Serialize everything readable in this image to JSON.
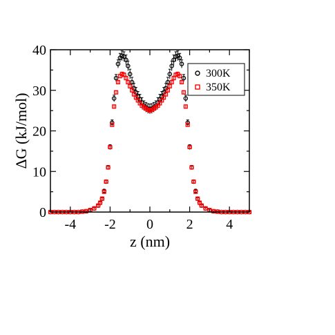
{
  "chart_data": {
    "type": "scatter",
    "title": "",
    "xlabel": "z (nm)",
    "ylabel": "ΔG (kJ/mol)",
    "xlim": [
      -5,
      5
    ],
    "ylim": [
      0,
      40
    ],
    "xticks": [
      -4,
      -2,
      0,
      2,
      4
    ],
    "yticks": [
      0,
      10,
      20,
      30,
      40
    ],
    "grid": false,
    "legend_position": "top-right",
    "series": [
      {
        "name": "300K",
        "color": "#000000",
        "marker": "open-circle",
        "error_bars": true,
        "x": [
          -5.0,
          -4.8,
          -4.6,
          -4.4,
          -4.2,
          -4.0,
          -3.8,
          -3.6,
          -3.4,
          -3.2,
          -3.0,
          -2.8,
          -2.6,
          -2.5,
          -2.4,
          -2.3,
          -2.2,
          -2.1,
          -2.0,
          -1.9,
          -1.8,
          -1.7,
          -1.6,
          -1.5,
          -1.4,
          -1.3,
          -1.2,
          -1.1,
          -1.0,
          -0.9,
          -0.8,
          -0.7,
          -0.6,
          -0.5,
          -0.4,
          -0.3,
          -0.2,
          -0.1,
          0.0,
          0.1,
          0.2,
          0.3,
          0.4,
          0.5,
          0.6,
          0.7,
          0.8,
          0.9,
          1.0,
          1.1,
          1.2,
          1.3,
          1.4,
          1.5,
          1.6,
          1.7,
          1.8,
          1.9,
          2.0,
          2.1,
          2.2,
          2.3,
          2.4,
          2.5,
          2.6,
          2.8,
          3.0,
          3.2,
          3.4,
          3.6,
          3.8,
          4.0,
          4.2,
          4.4,
          4.6,
          4.8,
          5.0
        ],
        "y": [
          0.0,
          0.0,
          0.0,
          0.0,
          0.0,
          0.0,
          0.0,
          0.0,
          0.1,
          0.2,
          0.5,
          0.9,
          1.6,
          2.3,
          3.3,
          5.2,
          7.5,
          11.0,
          16.0,
          22.0,
          28.0,
          33.0,
          36.5,
          38.0,
          38.5,
          38.3,
          37.5,
          36.0,
          34.0,
          32.0,
          30.5,
          29.5,
          28.5,
          27.8,
          27.0,
          26.2,
          25.8,
          25.5,
          25.4,
          25.5,
          25.8,
          26.2,
          27.0,
          27.8,
          28.5,
          29.5,
          30.5,
          32.0,
          34.0,
          36.0,
          37.5,
          38.3,
          38.5,
          38.0,
          36.5,
          33.0,
          28.0,
          22.0,
          16.0,
          11.0,
          7.5,
          5.2,
          3.3,
          2.3,
          1.6,
          0.9,
          0.5,
          0.2,
          0.1,
          0.0,
          0.0,
          0.0,
          0.0,
          0.0,
          0.0,
          0.0,
          0.0
        ],
        "err": [
          0.1,
          0.1,
          0.1,
          0.1,
          0.1,
          0.1,
          0.1,
          0.1,
          0.1,
          0.1,
          0.2,
          0.2,
          0.3,
          0.3,
          0.3,
          0.4,
          0.4,
          0.5,
          0.6,
          0.7,
          0.8,
          0.9,
          1.0,
          1.1,
          1.2,
          1.2,
          1.2,
          1.2,
          1.2,
          1.2,
          1.2,
          1.2,
          1.2,
          1.2,
          1.2,
          1.2,
          1.2,
          1.2,
          1.2,
          1.2,
          1.2,
          1.2,
          1.2,
          1.2,
          1.2,
          1.2,
          1.2,
          1.2,
          1.2,
          1.2,
          1.2,
          1.2,
          1.2,
          1.1,
          1.0,
          0.9,
          0.8,
          0.7,
          0.6,
          0.5,
          0.4,
          0.4,
          0.3,
          0.3,
          0.3,
          0.2,
          0.2,
          0.1,
          0.1,
          0.1,
          0.1,
          0.1,
          0.1,
          0.1,
          0.1,
          0.1,
          0.1
        ]
      },
      {
        "name": "350K",
        "color": "#ff0000",
        "marker": "open-square",
        "error_bars": true,
        "x": [
          -5.0,
          -4.8,
          -4.6,
          -4.4,
          -4.2,
          -4.0,
          -3.8,
          -3.6,
          -3.4,
          -3.2,
          -3.0,
          -2.8,
          -2.6,
          -2.5,
          -2.4,
          -2.3,
          -2.2,
          -2.1,
          -2.0,
          -1.9,
          -1.8,
          -1.7,
          -1.6,
          -1.5,
          -1.4,
          -1.3,
          -1.2,
          -1.1,
          -1.0,
          -0.9,
          -0.8,
          -0.7,
          -0.6,
          -0.5,
          -0.4,
          -0.3,
          -0.2,
          -0.1,
          0.0,
          0.1,
          0.2,
          0.3,
          0.4,
          0.5,
          0.6,
          0.7,
          0.8,
          0.9,
          1.0,
          1.1,
          1.2,
          1.3,
          1.4,
          1.5,
          1.6,
          1.7,
          1.8,
          1.9,
          2.0,
          2.1,
          2.2,
          2.3,
          2.4,
          2.5,
          2.6,
          2.8,
          3.0,
          3.2,
          3.4,
          3.6,
          3.8,
          4.0,
          4.2,
          4.4,
          4.6,
          4.8,
          5.0
        ],
        "y": [
          0.0,
          0.0,
          0.0,
          0.0,
          0.0,
          0.0,
          0.0,
          0.0,
          0.1,
          0.2,
          0.5,
          0.9,
          1.6,
          2.3,
          3.3,
          5.0,
          7.5,
          11.0,
          16.0,
          21.5,
          26.0,
          29.5,
          32.0,
          33.5,
          34.0,
          33.8,
          33.0,
          32.0,
          31.0,
          30.0,
          29.0,
          28.2,
          27.5,
          26.8,
          26.2,
          25.8,
          25.5,
          25.2,
          25.0,
          25.2,
          25.5,
          25.8,
          26.2,
          26.8,
          27.5,
          28.2,
          29.0,
          30.0,
          31.0,
          32.0,
          33.0,
          33.8,
          34.0,
          33.5,
          32.0,
          29.5,
          26.0,
          21.5,
          16.0,
          11.0,
          7.5,
          5.0,
          3.3,
          2.3,
          1.6,
          0.9,
          0.5,
          0.2,
          0.1,
          0.0,
          0.0,
          0.0,
          0.0,
          0.0,
          0.0,
          0.0,
          0.0
        ],
        "err": [
          0.1,
          0.1,
          0.1,
          0.1,
          0.1,
          0.1,
          0.1,
          0.1,
          0.1,
          0.1,
          0.2,
          0.2,
          0.2,
          0.2,
          0.2,
          0.3,
          0.3,
          0.3,
          0.3,
          0.4,
          0.4,
          0.4,
          0.5,
          0.5,
          0.5,
          0.5,
          0.5,
          0.5,
          0.5,
          0.5,
          0.5,
          0.5,
          0.5,
          0.5,
          0.5,
          0.5,
          0.5,
          0.5,
          0.5,
          0.5,
          0.5,
          0.5,
          0.5,
          0.5,
          0.5,
          0.5,
          0.5,
          0.5,
          0.5,
          0.5,
          0.5,
          0.5,
          0.5,
          0.5,
          0.5,
          0.4,
          0.4,
          0.4,
          0.3,
          0.3,
          0.3,
          0.3,
          0.2,
          0.2,
          0.2,
          0.2,
          0.2,
          0.1,
          0.1,
          0.1,
          0.1,
          0.1,
          0.1,
          0.1,
          0.1,
          0.1,
          0.1
        ]
      }
    ]
  }
}
